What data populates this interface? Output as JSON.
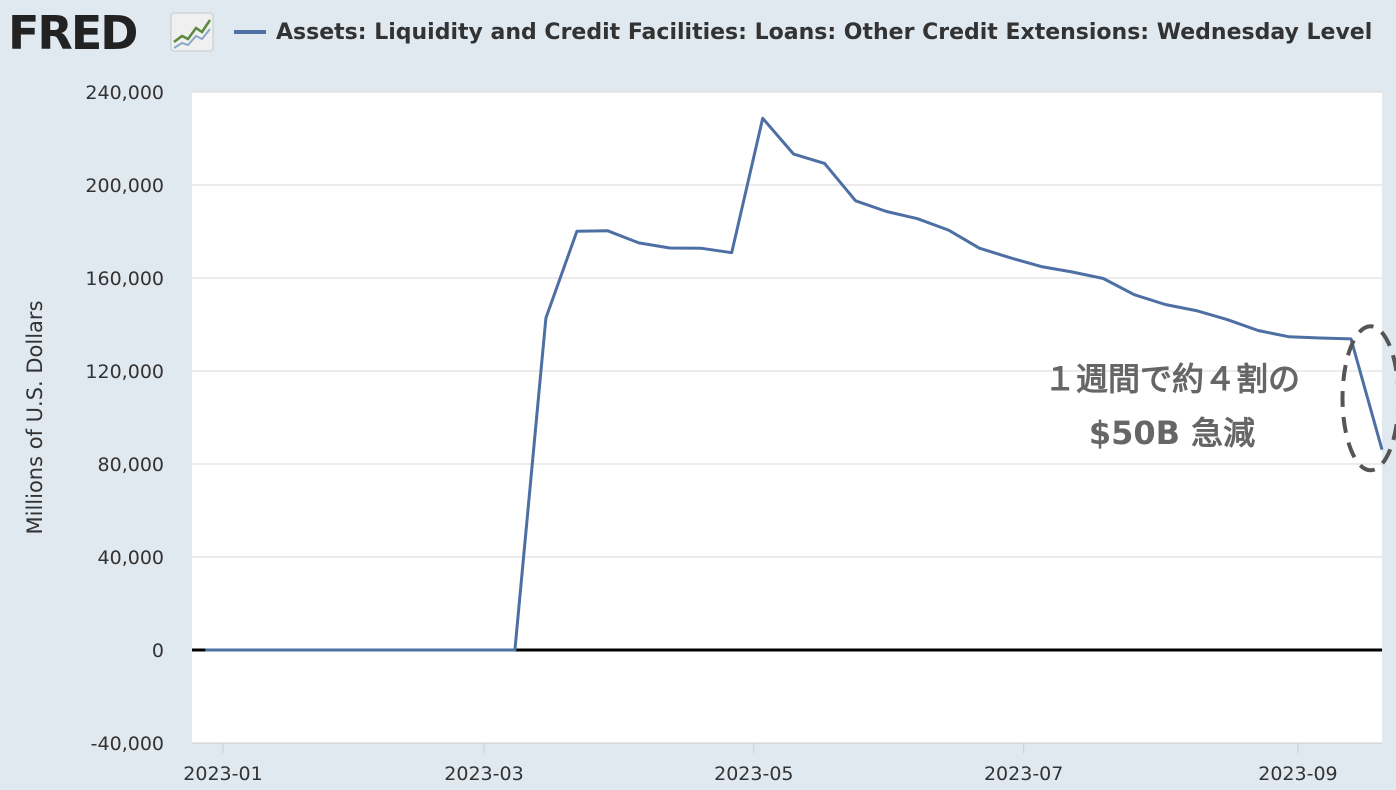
{
  "header": {
    "logo_text": "FRED",
    "logo_mark": "fred-trend-chart-icon",
    "legend_label": "Assets: Liquidity and Credit Facilities: Loans: Other Credit Extensions: Wednesday Level"
  },
  "colors": {
    "series": "#4d6fa3",
    "background": "#e1e9f0",
    "plot": "#ffffff",
    "grid": "#d9d9d9",
    "zero_line": "#000000",
    "annotation": "#666666"
  },
  "chart_data": {
    "type": "line",
    "title": "",
    "xlabel": "",
    "ylabel": "Millions of U.S. Dollars",
    "ylim": [
      -40000,
      240000
    ],
    "xlim": [
      "2022-12-25",
      "2023-09-20"
    ],
    "yticks": [
      -40000,
      0,
      40000,
      80000,
      120000,
      160000,
      200000,
      240000
    ],
    "ytick_labels": [
      "-40,000",
      "0",
      "40,000",
      "80,000",
      "120,000",
      "160,000",
      "200,000",
      "240,000"
    ],
    "xticks": [
      "2023-01-01",
      "2023-03-01",
      "2023-05-01",
      "2023-07-01",
      "2023-09-01"
    ],
    "xtick_labels": [
      "2023-01",
      "2023-03",
      "2023-05",
      "2023-07",
      "2023-09"
    ],
    "grid": true,
    "legend": "top",
    "series": [
      {
        "name": "Assets: Liquidity and Credit Facilities: Loans: Other Credit Extensions: Wednesday Level",
        "x": [
          "2022-12-28",
          "2023-01-04",
          "2023-01-11",
          "2023-01-18",
          "2023-01-25",
          "2023-02-01",
          "2023-02-08",
          "2023-02-15",
          "2023-02-22",
          "2023-03-01",
          "2023-03-08",
          "2023-03-15",
          "2023-03-22",
          "2023-03-29",
          "2023-04-05",
          "2023-04-12",
          "2023-04-19",
          "2023-04-26",
          "2023-05-03",
          "2023-05-10",
          "2023-05-17",
          "2023-05-24",
          "2023-05-31",
          "2023-06-07",
          "2023-06-14",
          "2023-06-21",
          "2023-06-28",
          "2023-07-05",
          "2023-07-12",
          "2023-07-19",
          "2023-07-26",
          "2023-08-02",
          "2023-08-09",
          "2023-08-16",
          "2023-08-23",
          "2023-08-30",
          "2023-09-06",
          "2023-09-13",
          "2023-09-20"
        ],
        "y": [
          0,
          0,
          0,
          0,
          0,
          0,
          0,
          0,
          0,
          0,
          0,
          142800,
          180100,
          180300,
          175100,
          172900,
          172800,
          170900,
          228700,
          213300,
          209300,
          193200,
          188600,
          185500,
          180600,
          172800,
          168700,
          164900,
          162600,
          159800,
          152800,
          148600,
          146000,
          142100,
          137400,
          134700,
          134200,
          133800,
          86200
        ]
      }
    ],
    "annotations": [
      {
        "lines": [
          "１週間で約４割の",
          "$50B 急減"
        ]
      }
    ]
  }
}
